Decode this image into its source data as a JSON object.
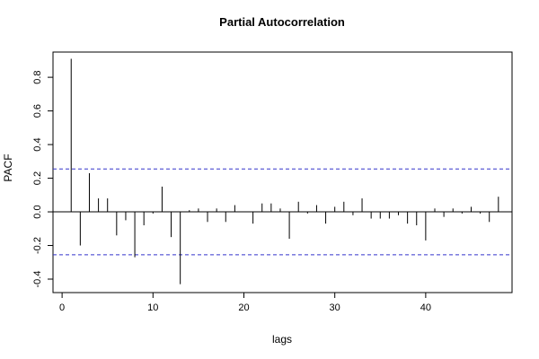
{
  "chart_data": {
    "type": "bar",
    "title": "Partial Autocorrelation",
    "xlabel": "lags",
    "ylabel": "PACF",
    "xlim": [
      -1,
      49.5
    ],
    "ylim": [
      -0.48,
      0.95
    ],
    "x_ticks": [
      0,
      10,
      20,
      30,
      40
    ],
    "x_tick_labels": [
      "0",
      "10",
      "20",
      "30",
      "40"
    ],
    "y_ticks": [
      -0.4,
      -0.2,
      0.0,
      0.2,
      0.4,
      0.6,
      0.8
    ],
    "y_tick_labels": [
      "-0.4",
      "-0.2",
      "0.0",
      "0.2",
      "0.4",
      "0.6",
      "0.8"
    ],
    "confidence_bound": 0.255,
    "lags": [
      1,
      2,
      3,
      4,
      5,
      6,
      7,
      8,
      9,
      10,
      11,
      12,
      13,
      14,
      15,
      16,
      17,
      18,
      19,
      20,
      21,
      22,
      23,
      24,
      25,
      26,
      27,
      28,
      29,
      30,
      31,
      32,
      33,
      34,
      35,
      36,
      37,
      38,
      39,
      40,
      41,
      42,
      43,
      44,
      45,
      46,
      47,
      48
    ],
    "values": [
      0.91,
      -0.2,
      0.23,
      0.08,
      0.08,
      -0.14,
      -0.05,
      -0.27,
      -0.08,
      -0.01,
      0.15,
      -0.15,
      -0.43,
      0.01,
      0.02,
      -0.06,
      0.02,
      -0.06,
      0.04,
      0.0,
      -0.07,
      0.05,
      0.05,
      0.02,
      -0.16,
      0.06,
      -0.01,
      0.04,
      -0.07,
      0.03,
      0.06,
      -0.02,
      0.08,
      -0.04,
      -0.04,
      -0.04,
      -0.02,
      -0.07,
      -0.08,
      -0.17,
      0.02,
      -0.03,
      0.02,
      -0.01,
      0.03,
      -0.01,
      -0.06,
      0.09
    ],
    "grid": false,
    "colors": {
      "bars": "#000000",
      "bounds": "#3333cc",
      "axis": "#000000"
    }
  }
}
